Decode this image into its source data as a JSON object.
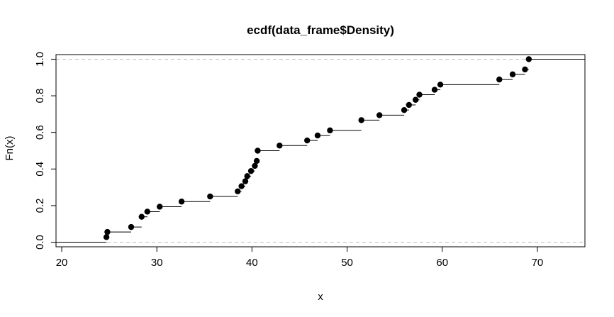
{
  "chart_data": {
    "type": "scatter",
    "subtype": "ecdf-step",
    "title": "ecdf(data_frame$Density)",
    "xlabel": "x",
    "ylabel": "Fn(x)",
    "xlim": [
      19.4,
      75
    ],
    "ylim": [
      -0.025,
      1.025
    ],
    "x_ticks": [
      20,
      30,
      40,
      50,
      60,
      70
    ],
    "y_ticks": [
      0.0,
      0.2,
      0.4,
      0.6,
      0.8,
      1.0
    ],
    "x_tick_labels": [
      "20",
      "30",
      "40",
      "50",
      "60",
      "70"
    ],
    "y_tick_labels": [
      "0.0",
      "0.2",
      "0.4",
      "0.6",
      "0.8",
      "1.0"
    ],
    "reference_lines": [
      0,
      1
    ],
    "grid": false,
    "colors": {
      "points": "#000000",
      "steps": "#000000",
      "reference": "#bdbdbd"
    },
    "points": [
      {
        "x": 24.7,
        "y": 0.028
      },
      {
        "x": 24.8,
        "y": 0.056
      },
      {
        "x": 27.3,
        "y": 0.083
      },
      {
        "x": 28.4,
        "y": 0.139
      },
      {
        "x": 29.0,
        "y": 0.167
      },
      {
        "x": 30.3,
        "y": 0.194
      },
      {
        "x": 32.6,
        "y": 0.222
      },
      {
        "x": 35.6,
        "y": 0.25
      },
      {
        "x": 38.5,
        "y": 0.278
      },
      {
        "x": 38.9,
        "y": 0.306
      },
      {
        "x": 39.3,
        "y": 0.333
      },
      {
        "x": 39.5,
        "y": 0.361
      },
      {
        "x": 39.9,
        "y": 0.389
      },
      {
        "x": 40.3,
        "y": 0.417
      },
      {
        "x": 40.5,
        "y": 0.444
      },
      {
        "x": 40.6,
        "y": 0.5
      },
      {
        "x": 42.9,
        "y": 0.528
      },
      {
        "x": 45.8,
        "y": 0.556
      },
      {
        "x": 46.9,
        "y": 0.583
      },
      {
        "x": 48.2,
        "y": 0.611
      },
      {
        "x": 51.5,
        "y": 0.667
      },
      {
        "x": 53.4,
        "y": 0.694
      },
      {
        "x": 56.0,
        "y": 0.722
      },
      {
        "x": 56.5,
        "y": 0.75
      },
      {
        "x": 57.2,
        "y": 0.778
      },
      {
        "x": 57.6,
        "y": 0.806
      },
      {
        "x": 59.2,
        "y": 0.833
      },
      {
        "x": 59.8,
        "y": 0.861
      },
      {
        "x": 66.0,
        "y": 0.889
      },
      {
        "x": 67.4,
        "y": 0.917
      },
      {
        "x": 68.7,
        "y": 0.944
      },
      {
        "x": 69.1,
        "y": 1.0
      }
    ]
  }
}
